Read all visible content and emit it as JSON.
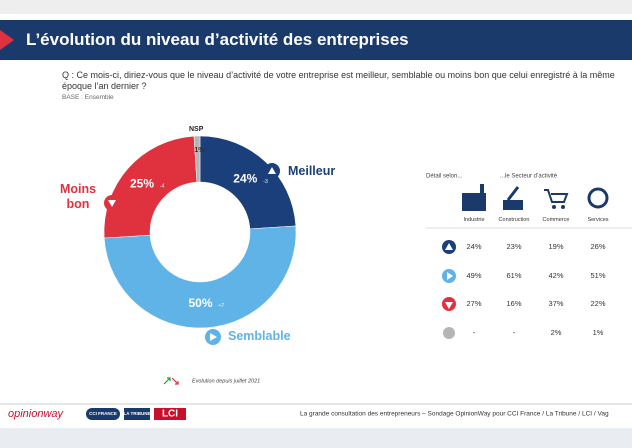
{
  "header": {
    "title": "L’évolution du niveau d’activité des entreprises"
  },
  "question": "Q : Ce mois-ci, diriez-vous que le niveau d’activité de votre entreprise est meilleur, semblable ou moins bon que celui enregistré à la même époque l’an dernier ?",
  "base": "BASE : Ensemble",
  "chart_data": {
    "type": "pie",
    "donut": true,
    "categories": [
      "Meilleur",
      "Semblable",
      "Moins bon",
      "NSP"
    ],
    "values": [
      24,
      50,
      25,
      1
    ],
    "value_labels": [
      "24%",
      "50%",
      "25%",
      "1%"
    ],
    "colors": [
      "#1b3f7a",
      "#5fb3e6",
      "#e0313f",
      "#b5b5b5"
    ],
    "changes": [
      "-3",
      "+7",
      "-4",
      null
    ],
    "legend_note": "Evolution depuis juillet 2021"
  },
  "table": {
    "heading": "Détail selon...",
    "group": "...le Secteur d’activité",
    "columns": [
      "Industrie",
      "Construction",
      "Commerce",
      "Services"
    ],
    "rows": [
      [
        "24%",
        "23%",
        "19%",
        "26%"
      ],
      [
        "49%",
        "61%",
        "42%",
        "51%"
      ],
      [
        "27%",
        "16%",
        "37%",
        "22%"
      ],
      [
        "-",
        "-",
        "2%",
        "1%"
      ]
    ]
  },
  "footer": {
    "brands": [
      "opinionway",
      "CCI FRANCE",
      "LA TRIBUNE",
      "LCI"
    ],
    "text": "La grande consultation des entrepreneurs – Sondage OpinionWay pour CCI France / La Tribune / LCI / Vag"
  }
}
